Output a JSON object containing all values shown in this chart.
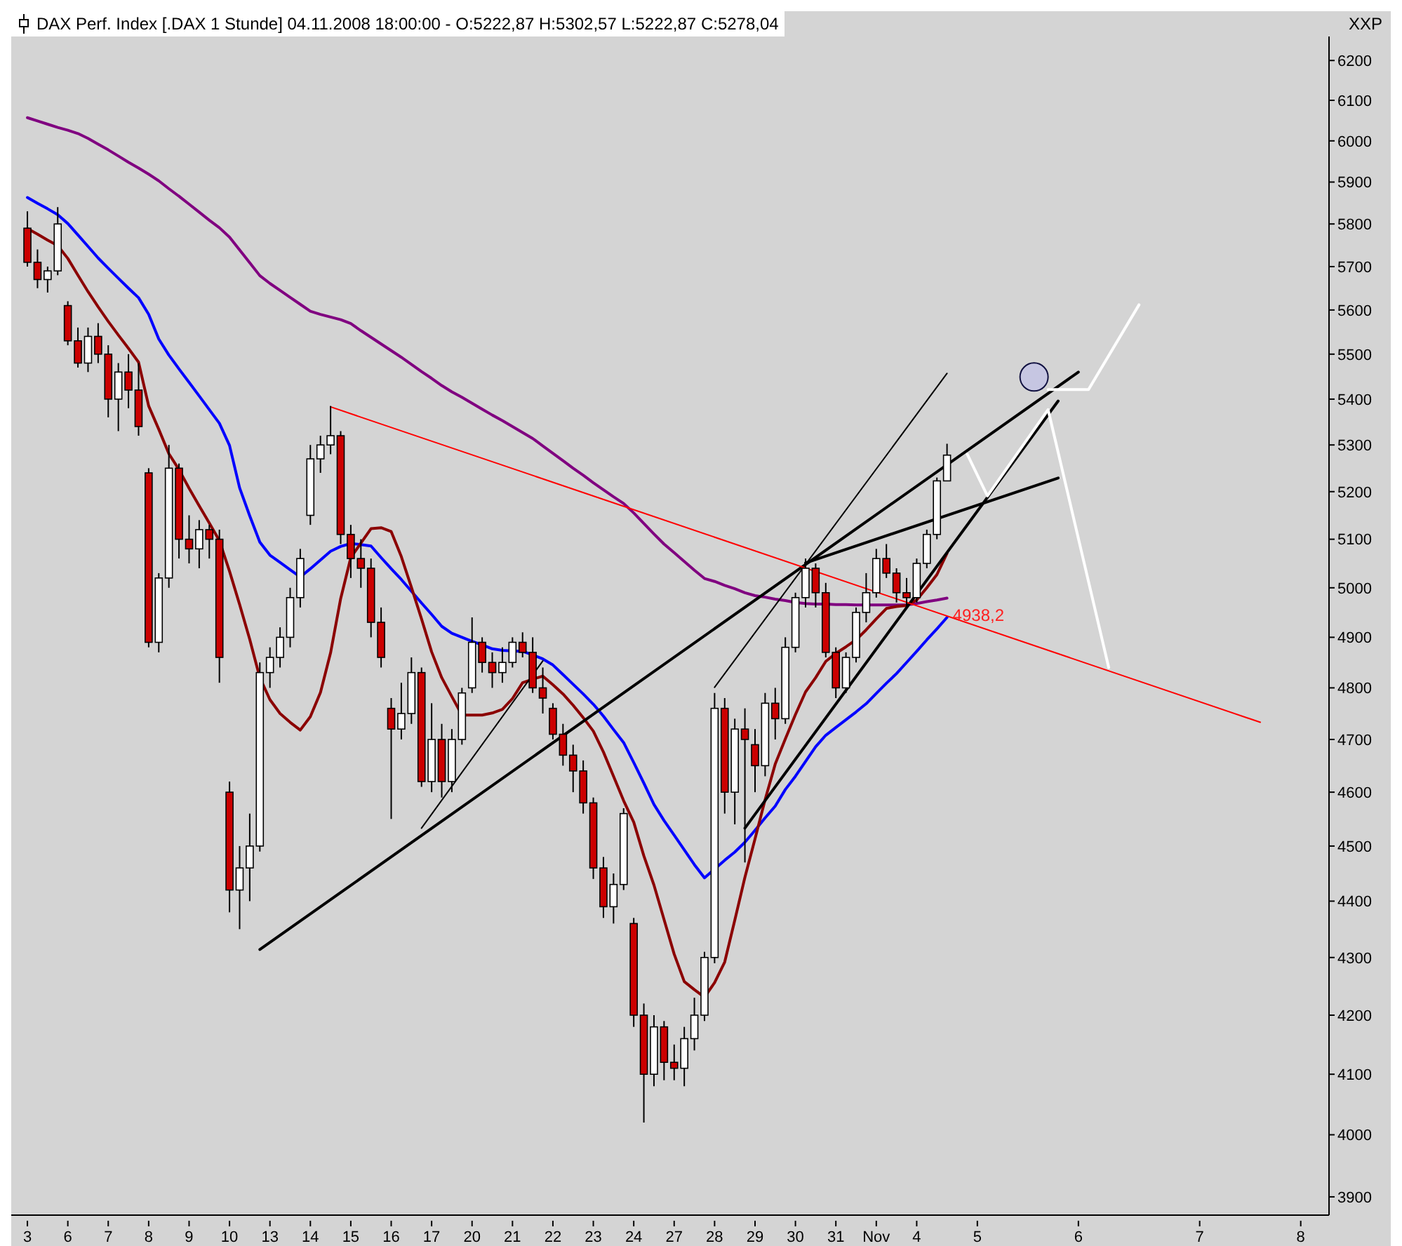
{
  "chart_data": {
    "type": "candlestick",
    "title": "DAX Perf. Index [.DAX  1 Stunde] 04.11.2008 18:00:00 - O:5222,87 H:5302,57 L:5222,87 C:5278,04",
    "ylabel": "XXP",
    "log": "y",
    "grid": false,
    "legend": false,
    "marker": "none",
    "line_style": "solid",
    "categories": [
      "3",
      null,
      null,
      null,
      "6",
      null,
      null,
      null,
      "7",
      null,
      null,
      null,
      "8",
      null,
      null,
      null,
      "9",
      null,
      null,
      null,
      "10",
      null,
      null,
      null,
      "13",
      null,
      null,
      null,
      "14",
      null,
      null,
      null,
      "15",
      null,
      null,
      null,
      "16",
      null,
      null,
      null,
      "17",
      null,
      null,
      null,
      "20",
      null,
      null,
      null,
      "21",
      null,
      null,
      null,
      "22",
      null,
      null,
      null,
      "23",
      null,
      null,
      null,
      "24",
      null,
      null,
      null,
      "27",
      null,
      null,
      null,
      "28",
      null,
      null,
      null,
      "29",
      null,
      null,
      null,
      "30",
      null,
      null,
      null,
      "31",
      null,
      null,
      null,
      "Nov",
      null,
      null,
      null,
      "4",
      null,
      null,
      null,
      null,
      null,
      "5",
      null,
      null,
      null,
      null,
      null,
      null,
      null,
      null,
      null,
      "6",
      null,
      null,
      null,
      null,
      null,
      null,
      null,
      null,
      null,
      null,
      null,
      "7",
      null,
      null,
      null,
      null,
      null,
      null,
      null,
      null,
      null,
      "8",
      null,
      null
    ],
    "ohlc": [
      [
        5790,
        5830,
        5700,
        5710
      ],
      [
        5710,
        5740,
        5650,
        5670
      ],
      [
        5670,
        5700,
        5640,
        5690
      ],
      [
        5690,
        5840,
        5680,
        5800
      ],
      [
        5610,
        5620,
        5520,
        5530
      ],
      [
        5530,
        5560,
        5470,
        5480
      ],
      [
        5480,
        5560,
        5460,
        5540
      ],
      [
        5540,
        5570,
        5480,
        5500
      ],
      [
        5500,
        5520,
        5360,
        5400
      ],
      [
        5400,
        5480,
        5330,
        5460
      ],
      [
        5460,
        5500,
        5380,
        5420
      ],
      [
        5420,
        5480,
        5320,
        5340
      ],
      [
        5240,
        5250,
        4880,
        4890
      ],
      [
        4890,
        5030,
        4870,
        5020
      ],
      [
        5020,
        5300,
        5000,
        5250
      ],
      [
        5250,
        5260,
        5060,
        5100
      ],
      [
        5100,
        5150,
        5050,
        5080
      ],
      [
        5080,
        5140,
        5040,
        5120
      ],
      [
        5120,
        5130,
        5060,
        5100
      ],
      [
        5100,
        5120,
        4810,
        4860
      ],
      [
        4600,
        4620,
        4380,
        4420
      ],
      [
        4420,
        4500,
        4350,
        4460
      ],
      [
        4460,
        4560,
        4400,
        4500
      ],
      [
        4500,
        4850,
        4490,
        4830
      ],
      [
        4830,
        4880,
        4800,
        4860
      ],
      [
        4860,
        4920,
        4840,
        4900
      ],
      [
        4900,
        5000,
        4880,
        4980
      ],
      [
        4980,
        5080,
        4960,
        5060
      ],
      [
        5150,
        5300,
        5130,
        5270
      ],
      [
        5270,
        5320,
        5240,
        5300
      ],
      [
        5300,
        5385,
        5280,
        5320
      ],
      [
        5320,
        5330,
        5090,
        5110
      ],
      [
        5110,
        5130,
        5020,
        5060
      ],
      [
        5060,
        5100,
        5000,
        5040
      ],
      [
        5040,
        5060,
        4900,
        4930
      ],
      [
        4930,
        4960,
        4840,
        4860
      ],
      [
        4760,
        4780,
        4550,
        4720
      ],
      [
        4720,
        4810,
        4700,
        4750
      ],
      [
        4750,
        4860,
        4730,
        4830
      ],
      [
        4830,
        4840,
        4610,
        4620
      ],
      [
        4620,
        4770,
        4600,
        4700
      ],
      [
        4700,
        4730,
        4590,
        4620
      ],
      [
        4620,
        4720,
        4600,
        4700
      ],
      [
        4700,
        4800,
        4690,
        4790
      ],
      [
        4800,
        4940,
        4790,
        4890
      ],
      [
        4890,
        4900,
        4830,
        4850
      ],
      [
        4850,
        4870,
        4800,
        4830
      ],
      [
        4830,
        4880,
        4810,
        4850
      ],
      [
        4850,
        4900,
        4840,
        4890
      ],
      [
        4890,
        4910,
        4860,
        4870
      ],
      [
        4870,
        4900,
        4790,
        4800
      ],
      [
        4800,
        4840,
        4750,
        4780
      ],
      [
        4760,
        4770,
        4700,
        4710
      ],
      [
        4710,
        4730,
        4650,
        4670
      ],
      [
        4670,
        4690,
        4600,
        4640
      ],
      [
        4640,
        4660,
        4560,
        4580
      ],
      [
        4580,
        4590,
        4440,
        4460
      ],
      [
        4460,
        4480,
        4370,
        4390
      ],
      [
        4390,
        4450,
        4360,
        4430
      ],
      [
        4430,
        4570,
        4420,
        4560
      ],
      [
        4360,
        4370,
        4180,
        4200
      ],
      [
        4200,
        4220,
        4020,
        4100
      ],
      [
        4100,
        4200,
        4080,
        4180
      ],
      [
        4180,
        4190,
        4090,
        4120
      ],
      [
        4120,
        4150,
        4090,
        4110
      ],
      [
        4110,
        4180,
        4080,
        4160
      ],
      [
        4160,
        4230,
        4140,
        4200
      ],
      [
        4200,
        4310,
        4190,
        4300
      ],
      [
        4300,
        4790,
        4290,
        4760
      ],
      [
        4760,
        4780,
        4560,
        4600
      ],
      [
        4600,
        4740,
        4540,
        4720
      ],
      [
        4720,
        4760,
        4470,
        4700
      ],
      [
        4690,
        4720,
        4600,
        4650
      ],
      [
        4650,
        4790,
        4630,
        4770
      ],
      [
        4770,
        4800,
        4700,
        4740
      ],
      [
        4740,
        4900,
        4730,
        4880
      ],
      [
        4880,
        4990,
        4870,
        4980
      ],
      [
        4980,
        5060,
        4960,
        5040
      ],
      [
        5040,
        5050,
        4960,
        4990
      ],
      [
        4990,
        5010,
        4860,
        4870
      ],
      [
        4870,
        4880,
        4780,
        4800
      ],
      [
        4800,
        4870,
        4790,
        4860
      ],
      [
        4860,
        4960,
        4850,
        4950
      ],
      [
        4950,
        5030,
        4930,
        4990
      ],
      [
        4990,
        5080,
        4980,
        5060
      ],
      [
        5060,
        5090,
        5020,
        5030
      ],
      [
        5030,
        5040,
        4970,
        4990
      ],
      [
        4990,
        5020,
        4960,
        4980
      ],
      [
        4980,
        5060,
        4970,
        5050
      ],
      [
        5050,
        5120,
        5040,
        5110
      ],
      [
        5110,
        5230,
        5100,
        5222.87
      ],
      [
        5222.87,
        5302.57,
        5222.87,
        5278.04
      ],
      null,
      null,
      null,
      null,
      null,
      null,
      null,
      null,
      null,
      null,
      null,
      null,
      null,
      null,
      null,
      null,
      null,
      null,
      null,
      null,
      null,
      null,
      null,
      null,
      null,
      null,
      null,
      null,
      null,
      null,
      null,
      null,
      null,
      null,
      null,
      null,
      null
    ],
    "series": [
      {
        "type": "line",
        "color": "#800080",
        "values": [
          6057,
          6049,
          6041,
          6033,
          6026,
          6018,
          6006,
          5992,
          5978,
          5963,
          5948,
          5934,
          5919,
          5903,
          5884,
          5866,
          5847,
          5828,
          5809,
          5791,
          5769,
          5739,
          5709,
          5679,
          5661,
          5645,
          5629,
          5613,
          5597,
          5590,
          5584,
          5578,
          5569,
          5553,
          5538,
          5523,
          5508,
          5493,
          5477,
          5461,
          5446,
          5430,
          5416,
          5404,
          5391,
          5378,
          5365,
          5353,
          5340,
          5327,
          5314,
          5298,
          5282,
          5266,
          5250,
          5235,
          5219,
          5204,
          5189,
          5175,
          5155,
          5133,
          5111,
          5090,
          5072,
          5054,
          5036,
          5019,
          5013,
          5005,
          4998,
          4990,
          4984,
          4981,
          4977,
          4974,
          4970,
          4968,
          4967,
          4967,
          4966,
          4966,
          4965,
          4965,
          4965,
          4965,
          4965,
          4965,
          4968,
          4972,
          4975,
          4979,
          null,
          null,
          null,
          null,
          null,
          null,
          null,
          null,
          null,
          null,
          null,
          null,
          null,
          null,
          null,
          null,
          null,
          null,
          null,
          null,
          null,
          null,
          null,
          null,
          null,
          null,
          null,
          null,
          null,
          null,
          null,
          null,
          null,
          null,
          null,
          null,
          null
        ]
      },
      {
        "type": "line",
        "color": "#0000ff",
        "values": [
          5863,
          5849,
          5836,
          5822,
          5801,
          5774,
          5747,
          5720,
          5696,
          5673,
          5650,
          5628,
          5590,
          5534,
          5498,
          5467,
          5437,
          5407,
          5377,
          5347,
          5299,
          5208,
          5149,
          5094,
          5067,
          5052,
          5037,
          5022,
          5039,
          5057,
          5075,
          5085,
          5091,
          5089,
          5086,
          5062,
          5039,
          5017,
          4993,
          4969,
          4946,
          4922,
          4908,
          4900,
          4892,
          4885,
          4877,
          4874,
          4873,
          4872,
          4865,
          4857,
          4845,
          4826,
          4807,
          4788,
          4768,
          4745,
          4719,
          4694,
          4656,
          4617,
          4577,
          4547,
          4520,
          4493,
          4466,
          4442,
          4458,
          4474,
          4489,
          4507,
          4529,
          4552,
          4574,
          4605,
          4630,
          4658,
          4686,
          4708,
          4723,
          4738,
          4753,
          4769,
          4789,
          4809,
          4828,
          4850,
          4872,
          4895,
          4917,
          4940,
          null,
          null,
          null,
          null,
          null,
          null,
          null,
          null,
          null,
          null,
          null,
          null,
          null,
          null,
          null,
          null,
          null,
          null,
          null,
          null,
          null,
          null,
          null,
          null,
          null,
          null,
          null,
          null,
          null,
          null,
          null,
          null,
          null,
          null,
          null,
          null,
          null
        ]
      },
      {
        "type": "line",
        "color": "#8b0000",
        "values": [
          5789,
          5776,
          5762,
          5749,
          5719,
          5680,
          5642,
          5607,
          5574,
          5543,
          5513,
          5482,
          5385,
          5334,
          5281,
          5247,
          5207,
          5170,
          5134,
          5097,
          5034,
          4966,
          4896,
          4820,
          4777,
          4750,
          4733,
          4718,
          4744,
          4791,
          4869,
          4978,
          5062,
          5092,
          5122,
          5124,
          5116,
          5064,
          5001,
          4937,
          4871,
          4820,
          4783,
          4747,
          4747,
          4747,
          4751,
          4758,
          4779,
          4810,
          4817,
          4823,
          4806,
          4788,
          4766,
          4742,
          4716,
          4676,
          4630,
          4584,
          4544,
          4482,
          4429,
          4367,
          4306,
          4258,
          4244,
          4231,
          4256,
          4292,
          4366,
          4443,
          4513,
          4586,
          4653,
          4701,
          4748,
          4792,
          4820,
          4852,
          4868,
          4881,
          4895,
          4915,
          4937,
          4958,
          4962,
          4964,
          4975,
          5000,
          5027,
          5071,
          null,
          null,
          null,
          null,
          null,
          null,
          null,
          null,
          null,
          null,
          null,
          null,
          null,
          null,
          null,
          null,
          null,
          null,
          null,
          null,
          null,
          null,
          null,
          null,
          null,
          null,
          null,
          null,
          null,
          null,
          null,
          null,
          null,
          null,
          null,
          null,
          null
        ]
      },
      {
        "type": "line",
        "color": "#000000",
        "values": [
          null,
          null,
          null,
          null,
          null,
          null,
          null,
          null,
          null,
          null,
          null,
          null,
          null,
          null,
          null,
          null,
          null,
          null,
          null,
          null,
          null,
          null,
          null,
          4314,
          null,
          null,
          null,
          null,
          null,
          null,
          null,
          null,
          null,
          null,
          null,
          null,
          null,
          null,
          null,
          null,
          null,
          null,
          null,
          null,
          null,
          null,
          null,
          null,
          null,
          null,
          null,
          null,
          null,
          null,
          null,
          null,
          null,
          null,
          null,
          null,
          null,
          null,
          null,
          null,
          null,
          null,
          null,
          null,
          null,
          null,
          null,
          null,
          null,
          null,
          null,
          null,
          null,
          null,
          null,
          null,
          null,
          null,
          null,
          null,
          null,
          null,
          null,
          null,
          null,
          null,
          null,
          null,
          null,
          null,
          null,
          null,
          null,
          null,
          null,
          null,
          null,
          null,
          null,
          null,
          5460,
          null,
          null,
          null,
          null,
          null,
          null,
          null,
          null,
          null,
          null,
          null,
          null,
          null,
          null,
          null,
          null,
          null,
          null,
          null,
          null,
          null,
          null,
          null,
          null
        ]
      },
      {
        "type": "line",
        "color": "#000000",
        "values": [
          null,
          null,
          null,
          null,
          null,
          null,
          null,
          null,
          null,
          null,
          null,
          null,
          null,
          null,
          null,
          null,
          null,
          null,
          null,
          null,
          null,
          null,
          null,
          null,
          null,
          null,
          null,
          null,
          null,
          null,
          null,
          null,
          null,
          null,
          null,
          null,
          null,
          null,
          null,
          null,
          null,
          null,
          null,
          null,
          null,
          null,
          null,
          null,
          null,
          null,
          null,
          null,
          null,
          null,
          null,
          null,
          null,
          null,
          null,
          null,
          null,
          null,
          null,
          null,
          null,
          null,
          null,
          null,
          null,
          null,
          null,
          null,
          null,
          null,
          null,
          null,
          null,
          5051,
          null,
          null,
          null,
          null,
          null,
          null,
          null,
          null,
          null,
          null,
          null,
          null,
          null,
          null,
          null,
          null,
          null,
          null,
          null,
          null,
          null,
          null,
          null,
          null,
          5229,
          null,
          null,
          null,
          null,
          null,
          null,
          null,
          null,
          null,
          null,
          null,
          null,
          null,
          null,
          null,
          null,
          null,
          null,
          null,
          null,
          null,
          null,
          null,
          null,
          null,
          null
        ]
      },
      {
        "type": "line",
        "color": "#000000",
        "values": [
          null,
          null,
          null,
          null,
          null,
          null,
          null,
          null,
          null,
          null,
          null,
          null,
          null,
          null,
          null,
          null,
          null,
          null,
          null,
          null,
          null,
          null,
          null,
          null,
          null,
          null,
          null,
          null,
          null,
          null,
          null,
          null,
          null,
          null,
          null,
          null,
          null,
          null,
          null,
          null,
          null,
          null,
          null,
          null,
          null,
          null,
          null,
          null,
          null,
          null,
          null,
          null,
          null,
          null,
          null,
          null,
          null,
          null,
          null,
          null,
          null,
          null,
          null,
          null,
          null,
          null,
          null,
          null,
          null,
          null,
          null,
          4533,
          null,
          null,
          null,
          null,
          null,
          null,
          null,
          null,
          null,
          null,
          null,
          null,
          null,
          null,
          null,
          null,
          null,
          null,
          null,
          null,
          null,
          null,
          null,
          null,
          null,
          null,
          null,
          null,
          null,
          null,
          5396,
          null,
          null,
          null,
          null,
          null,
          null,
          null,
          null,
          null,
          null,
          null,
          null,
          null,
          null,
          null,
          null,
          null,
          null,
          null,
          null,
          null,
          null,
          null,
          null,
          null,
          null
        ]
      },
      {
        "type": "line",
        "color": "#000000",
        "values": [
          null,
          null,
          null,
          null,
          null,
          null,
          null,
          null,
          null,
          null,
          null,
          null,
          null,
          null,
          null,
          null,
          null,
          null,
          null,
          null,
          null,
          null,
          null,
          null,
          null,
          null,
          null,
          null,
          null,
          null,
          null,
          null,
          null,
          null,
          null,
          null,
          null,
          null,
          null,
          4533,
          null,
          null,
          null,
          null,
          null,
          null,
          null,
          null,
          null,
          null,
          null,
          4853,
          null,
          null,
          null,
          null,
          null,
          null,
          null,
          null,
          null,
          null,
          null,
          null,
          null,
          null,
          null,
          null,
          null,
          null,
          null,
          null,
          null,
          null,
          null,
          null,
          null,
          null,
          null,
          null,
          null,
          null,
          null,
          null,
          null,
          null,
          null,
          null,
          null,
          null,
          null,
          null,
          null,
          null,
          null,
          null,
          null,
          null,
          null,
          null,
          null,
          null,
          null,
          null,
          null,
          null,
          null,
          null,
          null,
          null,
          null,
          null,
          null,
          null,
          null,
          null,
          null,
          null,
          null,
          null,
          null,
          null,
          null,
          null,
          null,
          null,
          null,
          null,
          null
        ]
      },
      {
        "type": "line",
        "color": "#000000",
        "values": [
          null,
          null,
          null,
          null,
          null,
          null,
          null,
          null,
          null,
          null,
          null,
          null,
          null,
          null,
          null,
          null,
          null,
          null,
          null,
          null,
          null,
          null,
          null,
          null,
          null,
          null,
          null,
          null,
          null,
          null,
          null,
          null,
          null,
          null,
          null,
          null,
          null,
          null,
          null,
          null,
          null,
          null,
          null,
          null,
          null,
          null,
          null,
          null,
          null,
          null,
          null,
          null,
          null,
          null,
          null,
          null,
          null,
          null,
          null,
          null,
          null,
          null,
          null,
          null,
          null,
          null,
          null,
          null,
          4801,
          null,
          null,
          null,
          null,
          null,
          null,
          null,
          null,
          null,
          null,
          null,
          null,
          null,
          null,
          null,
          null,
          null,
          null,
          null,
          null,
          null,
          null,
          5457,
          null,
          null,
          null,
          null,
          null,
          null,
          null,
          null,
          null,
          null,
          null,
          null,
          null,
          null,
          null,
          null,
          null,
          null,
          null,
          null,
          null,
          null,
          null,
          null,
          null,
          null,
          null,
          null,
          null,
          null,
          null,
          null,
          null,
          null,
          null,
          null,
          null
        ]
      },
      {
        "type": "line",
        "color": "#ff0000",
        "values": [
          null,
          null,
          null,
          null,
          null,
          null,
          null,
          null,
          null,
          null,
          null,
          null,
          null,
          null,
          null,
          null,
          null,
          null,
          null,
          null,
          null,
          null,
          null,
          null,
          null,
          null,
          null,
          null,
          null,
          null,
          5383,
          null,
          null,
          null,
          null,
          null,
          null,
          null,
          null,
          null,
          null,
          null,
          null,
          null,
          null,
          null,
          null,
          null,
          null,
          null,
          null,
          null,
          null,
          null,
          null,
          null,
          null,
          null,
          null,
          null,
          null,
          null,
          null,
          null,
          null,
          null,
          null,
          null,
          null,
          null,
          null,
          null,
          null,
          null,
          null,
          null,
          null,
          null,
          null,
          null,
          null,
          null,
          null,
          null,
          null,
          null,
          null,
          null,
          null,
          null,
          null,
          null,
          null,
          null,
          null,
          null,
          null,
          null,
          null,
          null,
          null,
          null,
          null,
          null,
          null,
          null,
          null,
          null,
          null,
          null,
          null,
          null,
          null,
          null,
          null,
          null,
          null,
          null,
          null,
          null,
          null,
          null,
          4733,
          null,
          null,
          null,
          null,
          null,
          null
        ]
      },
      {
        "type": "line",
        "color": "#ffffff",
        "values": [
          null,
          null,
          null,
          null,
          null,
          null,
          null,
          null,
          null,
          null,
          null,
          null,
          null,
          null,
          null,
          null,
          null,
          null,
          null,
          null,
          null,
          null,
          null,
          null,
          null,
          null,
          null,
          null,
          null,
          null,
          null,
          null,
          null,
          null,
          null,
          null,
          null,
          null,
          null,
          null,
          null,
          null,
          null,
          null,
          null,
          null,
          null,
          null,
          null,
          null,
          null,
          null,
          null,
          null,
          null,
          null,
          null,
          null,
          null,
          null,
          null,
          null,
          null,
          null,
          null,
          null,
          null,
          null,
          null,
          null,
          null,
          null,
          null,
          null,
          null,
          null,
          null,
          null,
          null,
          null,
          null,
          null,
          null,
          null,
          null,
          null,
          null,
          null,
          null,
          null,
          null,
          null,
          null,
          5280,
          null,
          5191,
          null,
          null,
          null,
          null,
          null,
          5377,
          null,
          null,
          null,
          null,
          null,
          4840,
          null,
          null,
          null,
          null,
          null,
          null,
          null,
          null,
          null,
          null,
          null,
          null,
          null,
          null,
          null,
          null,
          null,
          null,
          null,
          null,
          null
        ]
      },
      {
        "type": "line",
        "color": "#ffffff",
        "values": [
          null,
          null,
          null,
          null,
          null,
          null,
          null,
          null,
          null,
          null,
          null,
          null,
          null,
          null,
          null,
          null,
          null,
          null,
          null,
          null,
          null,
          null,
          null,
          null,
          null,
          null,
          null,
          null,
          null,
          null,
          null,
          null,
          null,
          null,
          null,
          null,
          null,
          null,
          null,
          null,
          null,
          null,
          null,
          null,
          null,
          null,
          null,
          null,
          null,
          null,
          null,
          null,
          null,
          null,
          null,
          null,
          null,
          null,
          null,
          null,
          null,
          null,
          null,
          null,
          null,
          null,
          null,
          null,
          null,
          null,
          null,
          null,
          null,
          null,
          null,
          null,
          null,
          null,
          null,
          null,
          null,
          null,
          null,
          null,
          null,
          null,
          null,
          null,
          null,
          null,
          null,
          null,
          null,
          null,
          null,
          null,
          null,
          null,
          null,
          null,
          null,
          5421,
          null,
          null,
          null,
          5421,
          null,
          null,
          null,
          null,
          5612,
          null,
          null,
          null,
          null,
          null,
          null,
          null,
          null,
          null,
          null,
          null,
          null,
          null,
          null,
          null,
          null,
          null,
          null
        ]
      }
    ],
    "annotations": [
      "4938,2"
    ],
    "ylim": [
      3871,
      6261
    ],
    "yticks": [
      3900,
      4000,
      4100,
      4200,
      4300,
      4400,
      4500,
      4600,
      4700,
      4800,
      4900,
      5000,
      5100,
      5200,
      5300,
      5400,
      5500,
      5600,
      5700,
      5800,
      5900,
      6000,
      6100,
      6200
    ]
  }
}
